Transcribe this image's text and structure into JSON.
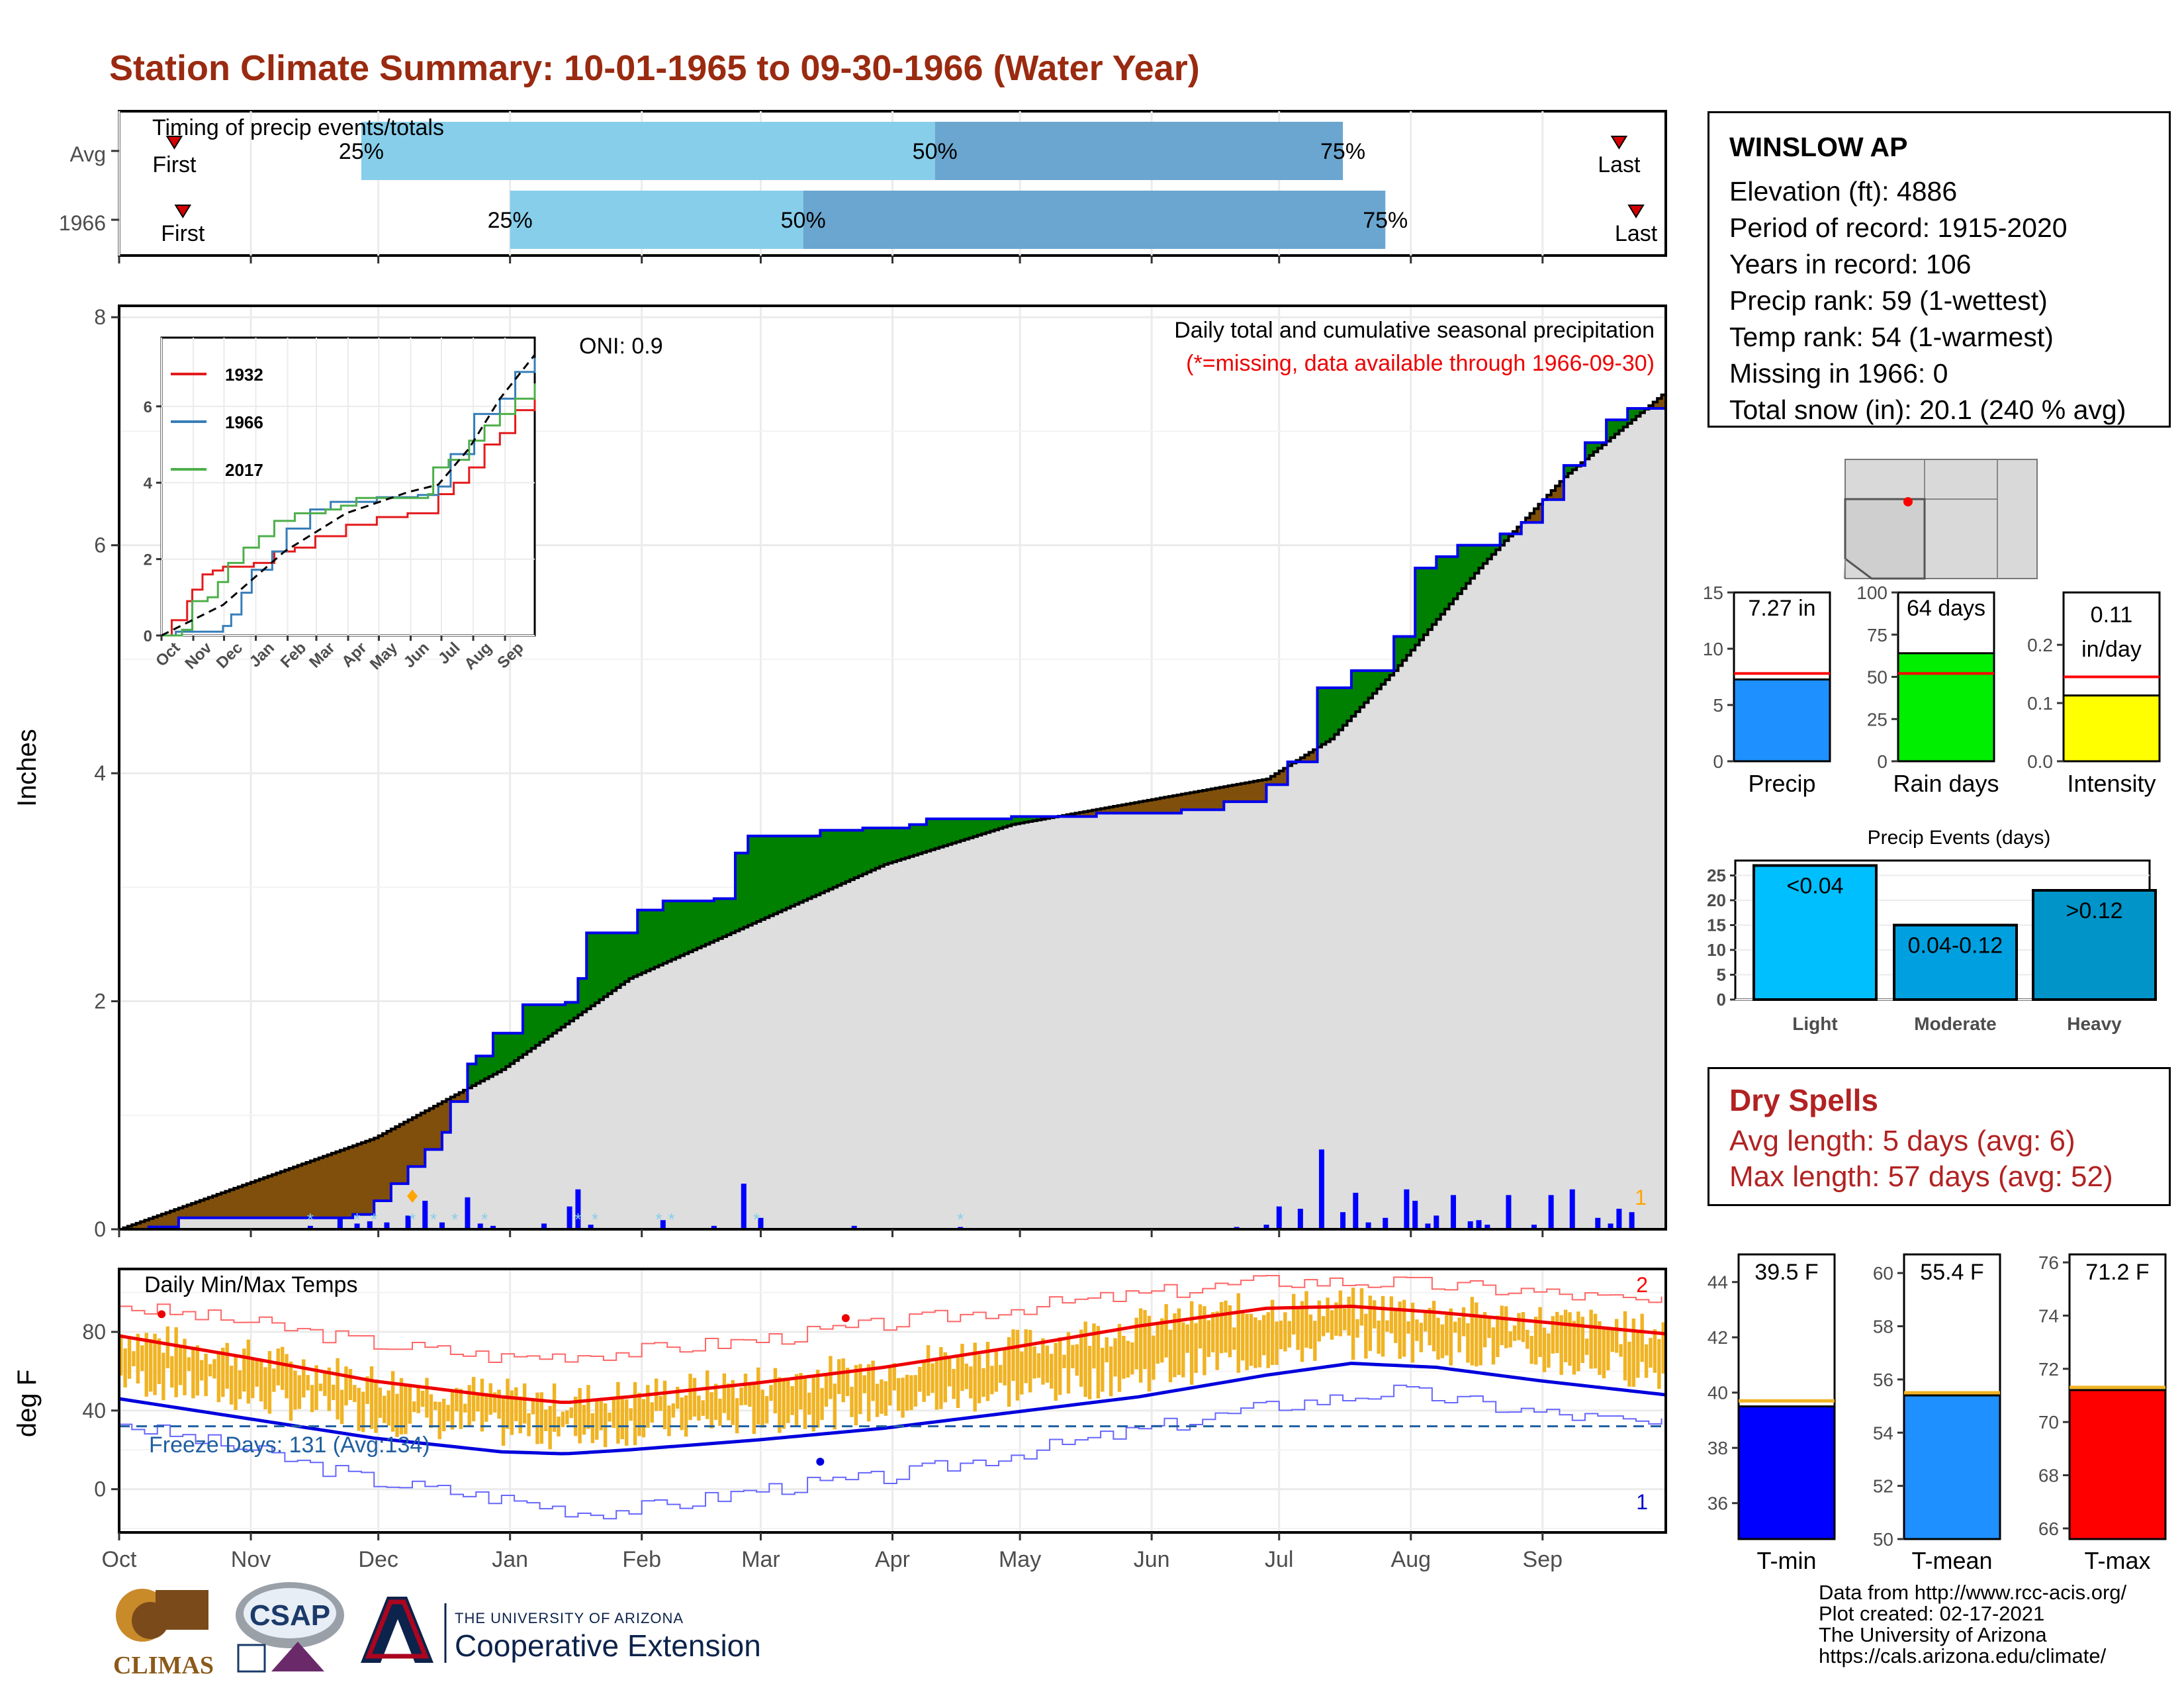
{
  "title": "Station Climate Summary: 10-01-1965 to 09-30-1966 (Water Year)",
  "timing": {
    "label": "Timing of precip events/totals",
    "rows": [
      {
        "name": "Avg",
        "first_label": "First",
        "last_label": "Last",
        "first_day": 13,
        "last_day": 353,
        "p25_day": 57,
        "p50_day": 192,
        "p75_day": 288,
        "p25_label": "25%",
        "p50_label": "50%",
        "p75_label": "75%"
      },
      {
        "name": "1966",
        "first_label": "First",
        "last_label": "Last",
        "first_day": 15,
        "last_day": 357,
        "p25_day": 92,
        "p50_day": 161,
        "p75_day": 298,
        "p25_label": "25%",
        "p50_label": "50%",
        "p75_label": "75%"
      }
    ]
  },
  "months": [
    "Oct",
    "Nov",
    "Dec",
    "Jan",
    "Feb",
    "Mar",
    "Apr",
    "May",
    "Jun",
    "Jul",
    "Aug",
    "Sep"
  ],
  "precip_panel": {
    "ylabel": "Inches",
    "title": "Daily total and cumulative seasonal precipitation",
    "subtitle": "(*=missing, data available through 1966-09-30)",
    "oni": "ONI: 0.9",
    "corner_label": "1",
    "yticks": [
      "0",
      "2",
      "4",
      "6",
      "8"
    ]
  },
  "inset": {
    "yticks": [
      "0",
      "2",
      "4",
      "6"
    ],
    "months": [
      "Oct",
      "Nov",
      "Dec",
      "Jan",
      "Feb",
      "Mar",
      "Apr",
      "May",
      "Jun",
      "Jul",
      "Aug",
      "Sep"
    ],
    "legend": [
      {
        "label": "1932",
        "color": "#e41a1c"
      },
      {
        "label": "1966",
        "color": "#377eb8"
      },
      {
        "label": "2017",
        "color": "#4daf4a"
      }
    ]
  },
  "temp_panel": {
    "ylabel": "deg F",
    "title": "Daily Min/Max Temps",
    "freeze": "Freeze Days: 131 (Avg:134)",
    "label_top": "2",
    "label_bottom": "1",
    "yticks": [
      "0",
      "40",
      "80"
    ]
  },
  "info_box": {
    "station": "WINSLOW AP",
    "elevation": "Elevation (ft): 4886",
    "period": "Period of record: 1915-2020",
    "years": "Years in record: 106",
    "precip_rank": "Precip rank: 59 (1-wettest)",
    "temp_rank": "Temp rank: 54 (1-warmest)",
    "missing": "Missing in 1966: 0",
    "snow": "Total snow (in): 20.1 (240 % avg)"
  },
  "mini_bars": [
    {
      "name": "Precip",
      "label": "7.27 in",
      "value": 7.27,
      "avg": 7.8,
      "ymax": 15,
      "ticks": [
        "0",
        "5",
        "10",
        "15"
      ],
      "color": "#1e90ff"
    },
    {
      "name": "Rain days",
      "label": "64 days",
      "value": 64,
      "avg": 52,
      "ymax": 100,
      "ticks": [
        "0",
        "25",
        "50",
        "75",
        "100"
      ],
      "color": "#00ee00"
    },
    {
      "name": "Intensity",
      "label_line1": "0.11",
      "label_line2": "in/day",
      "value": 0.113,
      "avg": 0.145,
      "ymax": 0.29,
      "ticks": [
        "0.0",
        "0.1",
        "0.2"
      ],
      "color": "#ffff00"
    }
  ],
  "events": {
    "title": "Precip Events (days)",
    "ticks": [
      "0",
      "5",
      "10",
      "15",
      "20",
      "25"
    ],
    "bars": [
      {
        "name": "Light",
        "label": "<0.04",
        "value": 27,
        "color": "#00bfff"
      },
      {
        "name": "Moderate",
        "label": "0.04-0.12",
        "value": 15,
        "color": "#00a0e0"
      },
      {
        "name": "Heavy",
        "label": ">0.12",
        "value": 22,
        "color": "#0094c8"
      }
    ]
  },
  "dry_spells": {
    "title": "Dry Spells",
    "avg": "Avg length: 5 days (avg: 6)",
    "max": "Max length: 57 days (avg: 52)"
  },
  "temp_bars": [
    {
      "name": "T-min",
      "label": "39.5 F",
      "value": 39.5,
      "avg": 39.7,
      "ymin": 34.7,
      "ymax": 45,
      "ticks": [
        "36",
        "38",
        "40",
        "42",
        "44"
      ],
      "color": "#0000ff"
    },
    {
      "name": "T-mean",
      "label": "55.4 F",
      "value": 55.4,
      "avg": 55.5,
      "ymin": 50,
      "ymax": 60.7,
      "ticks": [
        "50",
        "52",
        "54",
        "56",
        "58",
        "60"
      ],
      "color": "#1e90ff"
    },
    {
      "name": "T-max",
      "label": "71.2 F",
      "value": 71.2,
      "avg": 71.3,
      "ymin": 65.6,
      "ymax": 76.3,
      "ticks": [
        "66",
        "68",
        "70",
        "72",
        "74",
        "76"
      ],
      "color": "#ff0000"
    }
  ],
  "credits": [
    "Data from http://www.rcc-acis.org/",
    "Plot created: 02-17-2021",
    "The University of Arizona",
    "https://cals.arizona.edu/climate/"
  ],
  "logos": {
    "climas": "CLIMAS",
    "csap": "CSAP",
    "ua_small": "THE UNIVERSITY OF ARIZONA",
    "ua_big": "Cooperative Extension"
  },
  "chart_data": {
    "type": "area",
    "x_unit": "day of water year (0 = Oct 1)",
    "y_unit": "inches",
    "ylim": [
      0,
      8
    ],
    "cumulative_1966": [
      [
        0,
        0
      ],
      [
        7,
        0.02
      ],
      [
        14,
        0.1
      ],
      [
        50,
        0.1
      ],
      [
        55,
        0.13
      ],
      [
        60,
        0.25
      ],
      [
        64,
        0.4
      ],
      [
        68,
        0.55
      ],
      [
        72,
        0.7
      ],
      [
        76,
        0.85
      ],
      [
        78,
        1.12
      ],
      [
        82,
        1.45
      ],
      [
        84,
        1.52
      ],
      [
        88,
        1.72
      ],
      [
        95,
        1.97
      ],
      [
        105,
        1.99
      ],
      [
        108,
        2.2
      ],
      [
        110,
        2.6
      ],
      [
        120,
        2.6
      ],
      [
        122,
        2.8
      ],
      [
        128,
        2.88
      ],
      [
        140,
        2.9
      ],
      [
        145,
        3.3
      ],
      [
        148,
        3.45
      ],
      [
        165,
        3.5
      ],
      [
        175,
        3.52
      ],
      [
        186,
        3.55
      ],
      [
        190,
        3.6
      ],
      [
        210,
        3.62
      ],
      [
        230,
        3.65
      ],
      [
        250,
        3.68
      ],
      [
        260,
        3.75
      ],
      [
        270,
        3.9
      ],
      [
        275,
        4.1
      ],
      [
        282,
        4.75
      ],
      [
        290,
        4.9
      ],
      [
        300,
        5.2
      ],
      [
        305,
        5.8
      ],
      [
        310,
        5.9
      ],
      [
        315,
        6.0
      ],
      [
        325,
        6.1
      ],
      [
        330,
        6.2
      ],
      [
        335,
        6.4
      ],
      [
        340,
        6.7
      ],
      [
        345,
        6.9
      ],
      [
        350,
        7.1
      ],
      [
        355,
        7.2
      ],
      [
        364,
        7.27
      ]
    ],
    "cumulative_avg": [
      [
        0,
        0
      ],
      [
        30,
        0.4
      ],
      [
        60,
        0.8
      ],
      [
        90,
        1.4
      ],
      [
        120,
        2.2
      ],
      [
        150,
        2.7
      ],
      [
        180,
        3.2
      ],
      [
        210,
        3.55
      ],
      [
        240,
        3.75
      ],
      [
        270,
        3.95
      ],
      [
        285,
        4.3
      ],
      [
        300,
        4.9
      ],
      [
        320,
        5.8
      ],
      [
        340,
        6.6
      ],
      [
        364,
        7.35
      ]
    ],
    "daily_precip": [
      [
        45,
        0.03
      ],
      [
        52,
        0.1
      ],
      [
        56,
        0.05
      ],
      [
        59,
        0.07
      ],
      [
        63,
        0.06
      ],
      [
        68,
        0.12
      ],
      [
        72,
        0.25
      ],
      [
        76,
        0.06
      ],
      [
        82,
        0.28
      ],
      [
        85,
        0.05
      ],
      [
        88,
        0.03
      ],
      [
        100,
        0.05
      ],
      [
        106,
        0.2
      ],
      [
        108,
        0.35
      ],
      [
        111,
        0.04
      ],
      [
        128,
        0.08
      ],
      [
        140,
        0.03
      ],
      [
        147,
        0.4
      ],
      [
        151,
        0.1
      ],
      [
        173,
        0.03
      ],
      [
        198,
        0.02
      ],
      [
        263,
        0.02
      ],
      [
        270,
        0.04
      ],
      [
        273,
        0.2
      ],
      [
        278,
        0.18
      ],
      [
        283,
        0.7
      ],
      [
        288,
        0.15
      ],
      [
        291,
        0.32
      ],
      [
        294,
        0.06
      ],
      [
        298,
        0.1
      ],
      [
        303,
        0.35
      ],
      [
        305,
        0.25
      ],
      [
        308,
        0.05
      ],
      [
        310,
        0.12
      ],
      [
        314,
        0.3
      ],
      [
        318,
        0.07
      ],
      [
        320,
        0.08
      ],
      [
        322,
        0.04
      ],
      [
        327,
        0.3
      ],
      [
        333,
        0.04
      ],
      [
        337,
        0.3
      ],
      [
        342,
        0.35
      ],
      [
        348,
        0.1
      ],
      [
        351,
        0.05
      ],
      [
        353,
        0.18
      ],
      [
        356,
        0.15
      ]
    ],
    "inset_series": [
      {
        "name": "1932",
        "points": [
          [
            0,
            0
          ],
          [
            10,
            0.4
          ],
          [
            20,
            0.4
          ],
          [
            25,
            0.9
          ],
          [
            30,
            1.2
          ],
          [
            40,
            1.6
          ],
          [
            50,
            1.7
          ],
          [
            60,
            1.8
          ],
          [
            90,
            1.9
          ],
          [
            110,
            2.2
          ],
          [
            130,
            2.3
          ],
          [
            150,
            2.6
          ],
          [
            180,
            2.9
          ],
          [
            210,
            3.1
          ],
          [
            240,
            3.2
          ],
          [
            260,
            3.2
          ],
          [
            270,
            3.7
          ],
          [
            285,
            4.0
          ],
          [
            300,
            4.4
          ],
          [
            315,
            5.0
          ],
          [
            330,
            5.3
          ],
          [
            345,
            5.9
          ],
          [
            364,
            6.3
          ]
        ]
      },
      {
        "name": "1966",
        "points": [
          [
            0,
            0
          ],
          [
            14,
            0.1
          ],
          [
            50,
            0.1
          ],
          [
            60,
            0.25
          ],
          [
            68,
            0.55
          ],
          [
            78,
            1.12
          ],
          [
            88,
            1.72
          ],
          [
            108,
            2.2
          ],
          [
            122,
            2.8
          ],
          [
            145,
            3.3
          ],
          [
            165,
            3.5
          ],
          [
            210,
            3.62
          ],
          [
            250,
            3.68
          ],
          [
            270,
            3.9
          ],
          [
            282,
            4.75
          ],
          [
            305,
            5.8
          ],
          [
            330,
            6.2
          ],
          [
            345,
            6.9
          ],
          [
            364,
            7.27
          ]
        ]
      },
      {
        "name": "2017",
        "points": [
          [
            0,
            0
          ],
          [
            20,
            0.15
          ],
          [
            30,
            0.9
          ],
          [
            45,
            1.0
          ],
          [
            55,
            1.4
          ],
          [
            65,
            1.9
          ],
          [
            80,
            2.3
          ],
          [
            95,
            2.6
          ],
          [
            110,
            3.0
          ],
          [
            130,
            3.2
          ],
          [
            160,
            3.3
          ],
          [
            175,
            3.4
          ],
          [
            190,
            3.6
          ],
          [
            260,
            3.7
          ],
          [
            265,
            4.4
          ],
          [
            280,
            4.6
          ],
          [
            300,
            5.1
          ],
          [
            315,
            5.5
          ],
          [
            330,
            5.8
          ],
          [
            345,
            6.2
          ],
          [
            364,
            6.6
          ]
        ]
      },
      {
        "name": "avg",
        "points": [
          [
            0,
            0
          ],
          [
            60,
            0.8
          ],
          [
            120,
            2.2
          ],
          [
            180,
            3.2
          ],
          [
            240,
            3.75
          ],
          [
            270,
            3.95
          ],
          [
            300,
            4.9
          ],
          [
            330,
            6.2
          ],
          [
            364,
            7.35
          ]
        ]
      }
    ],
    "temps": {
      "avg_max": [
        [
          0,
          78
        ],
        [
          30,
          67
        ],
        [
          60,
          55
        ],
        [
          90,
          47
        ],
        [
          105,
          44
        ],
        [
          120,
          47
        ],
        [
          150,
          54
        ],
        [
          180,
          62
        ],
        [
          210,
          72
        ],
        [
          240,
          83
        ],
        [
          270,
          92
        ],
        [
          290,
          93
        ],
        [
          310,
          90
        ],
        [
          335,
          85
        ],
        [
          364,
          79
        ]
      ],
      "avg_min": [
        [
          0,
          46
        ],
        [
          30,
          36
        ],
        [
          60,
          26
        ],
        [
          90,
          19
        ],
        [
          105,
          18
        ],
        [
          120,
          20
        ],
        [
          150,
          25
        ],
        [
          180,
          31
        ],
        [
          210,
          39
        ],
        [
          240,
          47
        ],
        [
          270,
          58
        ],
        [
          290,
          64
        ],
        [
          310,
          62
        ],
        [
          335,
          55
        ],
        [
          364,
          48
        ]
      ],
      "record_max": [
        [
          0,
          93
        ],
        [
          30,
          85
        ],
        [
          60,
          74
        ],
        [
          90,
          67
        ],
        [
          120,
          70
        ],
        [
          150,
          76
        ],
        [
          180,
          84
        ],
        [
          210,
          92
        ],
        [
          240,
          99
        ],
        [
          270,
          106
        ],
        [
          300,
          105
        ],
        [
          330,
          101
        ],
        [
          364,
          94
        ]
      ],
      "record_min": [
        [
          0,
          33
        ],
        [
          30,
          20
        ],
        [
          60,
          4
        ],
        [
          90,
          -5
        ],
        [
          110,
          -12
        ],
        [
          130,
          -8
        ],
        [
          150,
          0
        ],
        [
          180,
          6
        ],
        [
          210,
          18
        ],
        [
          240,
          30
        ],
        [
          270,
          42
        ],
        [
          300,
          50
        ],
        [
          330,
          40
        ],
        [
          364,
          32
        ]
      ]
    }
  }
}
